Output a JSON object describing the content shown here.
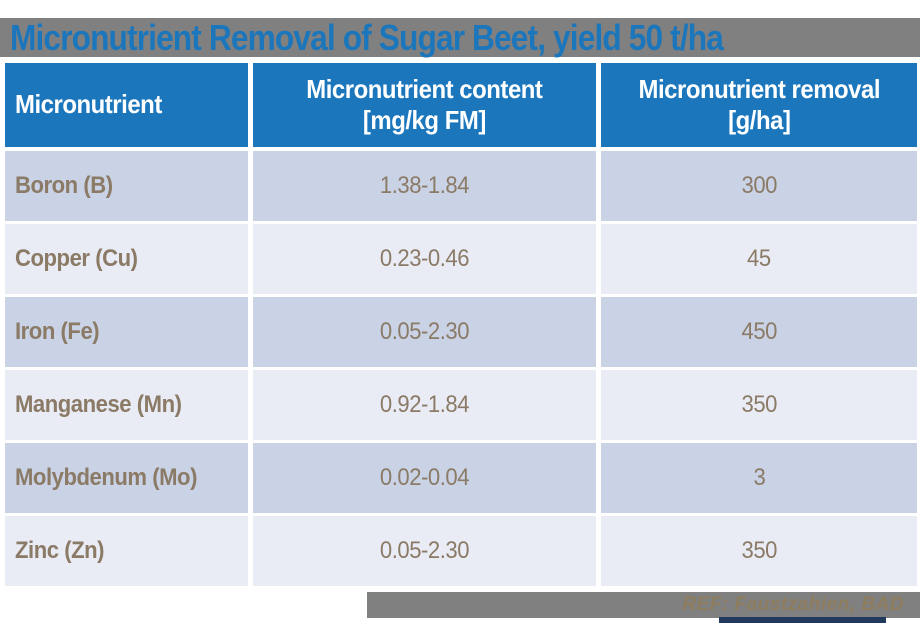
{
  "slide": {
    "title": "Micronutrient Removal of Sugar Beet, yield 50 t/ha",
    "footer_ref": "REF: Faustzahien, BAD"
  },
  "colors": {
    "accent_blue": "#1b76bc",
    "bar_gray": "#808080",
    "row_dark": "#c9d3e5",
    "row_light": "#e9ecf5",
    "body_text": "#8b7a66",
    "footer_text": "#8e7c5e",
    "underline_navy": "#20395c"
  },
  "table": {
    "columns": [
      {
        "line1": "Micronutrient",
        "line2": ""
      },
      {
        "line1": "Micronutrient content",
        "line2": "[mg/kg FM]"
      },
      {
        "line1": "Micronutrient removal",
        "line2": "[g/ha]"
      }
    ],
    "rows": [
      {
        "nutrient": "Boron (B)",
        "content": "1.38-1.84",
        "removal": "300"
      },
      {
        "nutrient": "Copper (Cu)",
        "content": "0.23-0.46",
        "removal": "45"
      },
      {
        "nutrient": "Iron (Fe)",
        "content": "0.05-2.30",
        "removal": "450"
      },
      {
        "nutrient": "Manganese (Mn)",
        "content": "0.92-1.84",
        "removal": "350"
      },
      {
        "nutrient": "Molybdenum (Mo)",
        "content": "0.02-0.04",
        "removal": "3"
      },
      {
        "nutrient": "Zinc (Zn)",
        "content": "0.05-2.30",
        "removal": "350"
      }
    ]
  }
}
